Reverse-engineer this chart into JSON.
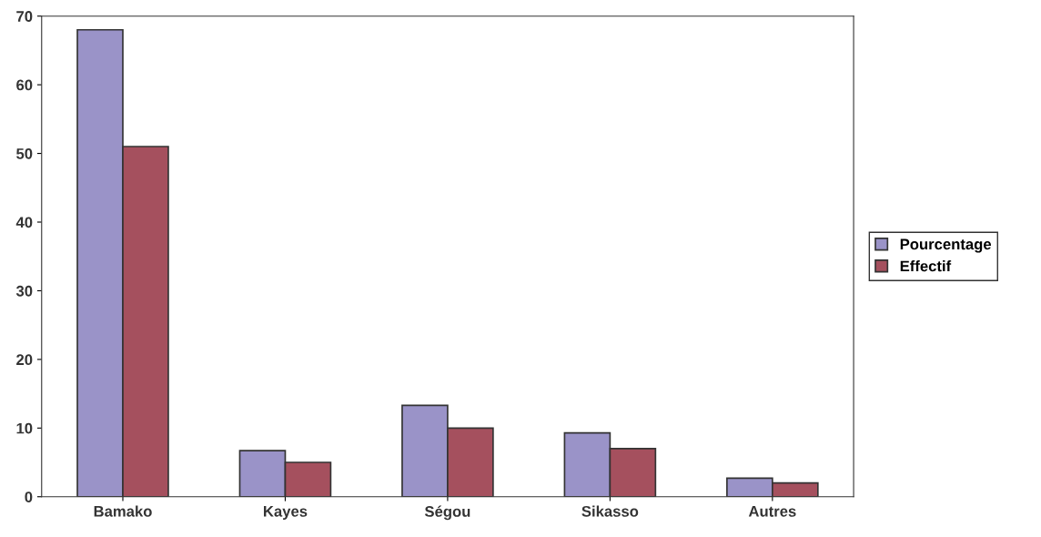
{
  "chart_data": {
    "type": "bar",
    "categories": [
      "Bamako",
      "Kayes",
      "Ségou",
      "Sikasso",
      "Autres"
    ],
    "series": [
      {
        "name": "Pourcentage",
        "color": "#9a93c8",
        "values": [
          68,
          6.7,
          13.3,
          9.3,
          2.7
        ]
      },
      {
        "name": "Effectif",
        "color": "#a5505e",
        "values": [
          51,
          5,
          10,
          7,
          2
        ]
      }
    ],
    "ylim": [
      0,
      70
    ],
    "yticks": [
      0,
      10,
      20,
      30,
      40,
      50,
      60,
      70
    ],
    "grid": false,
    "legend": "right"
  }
}
